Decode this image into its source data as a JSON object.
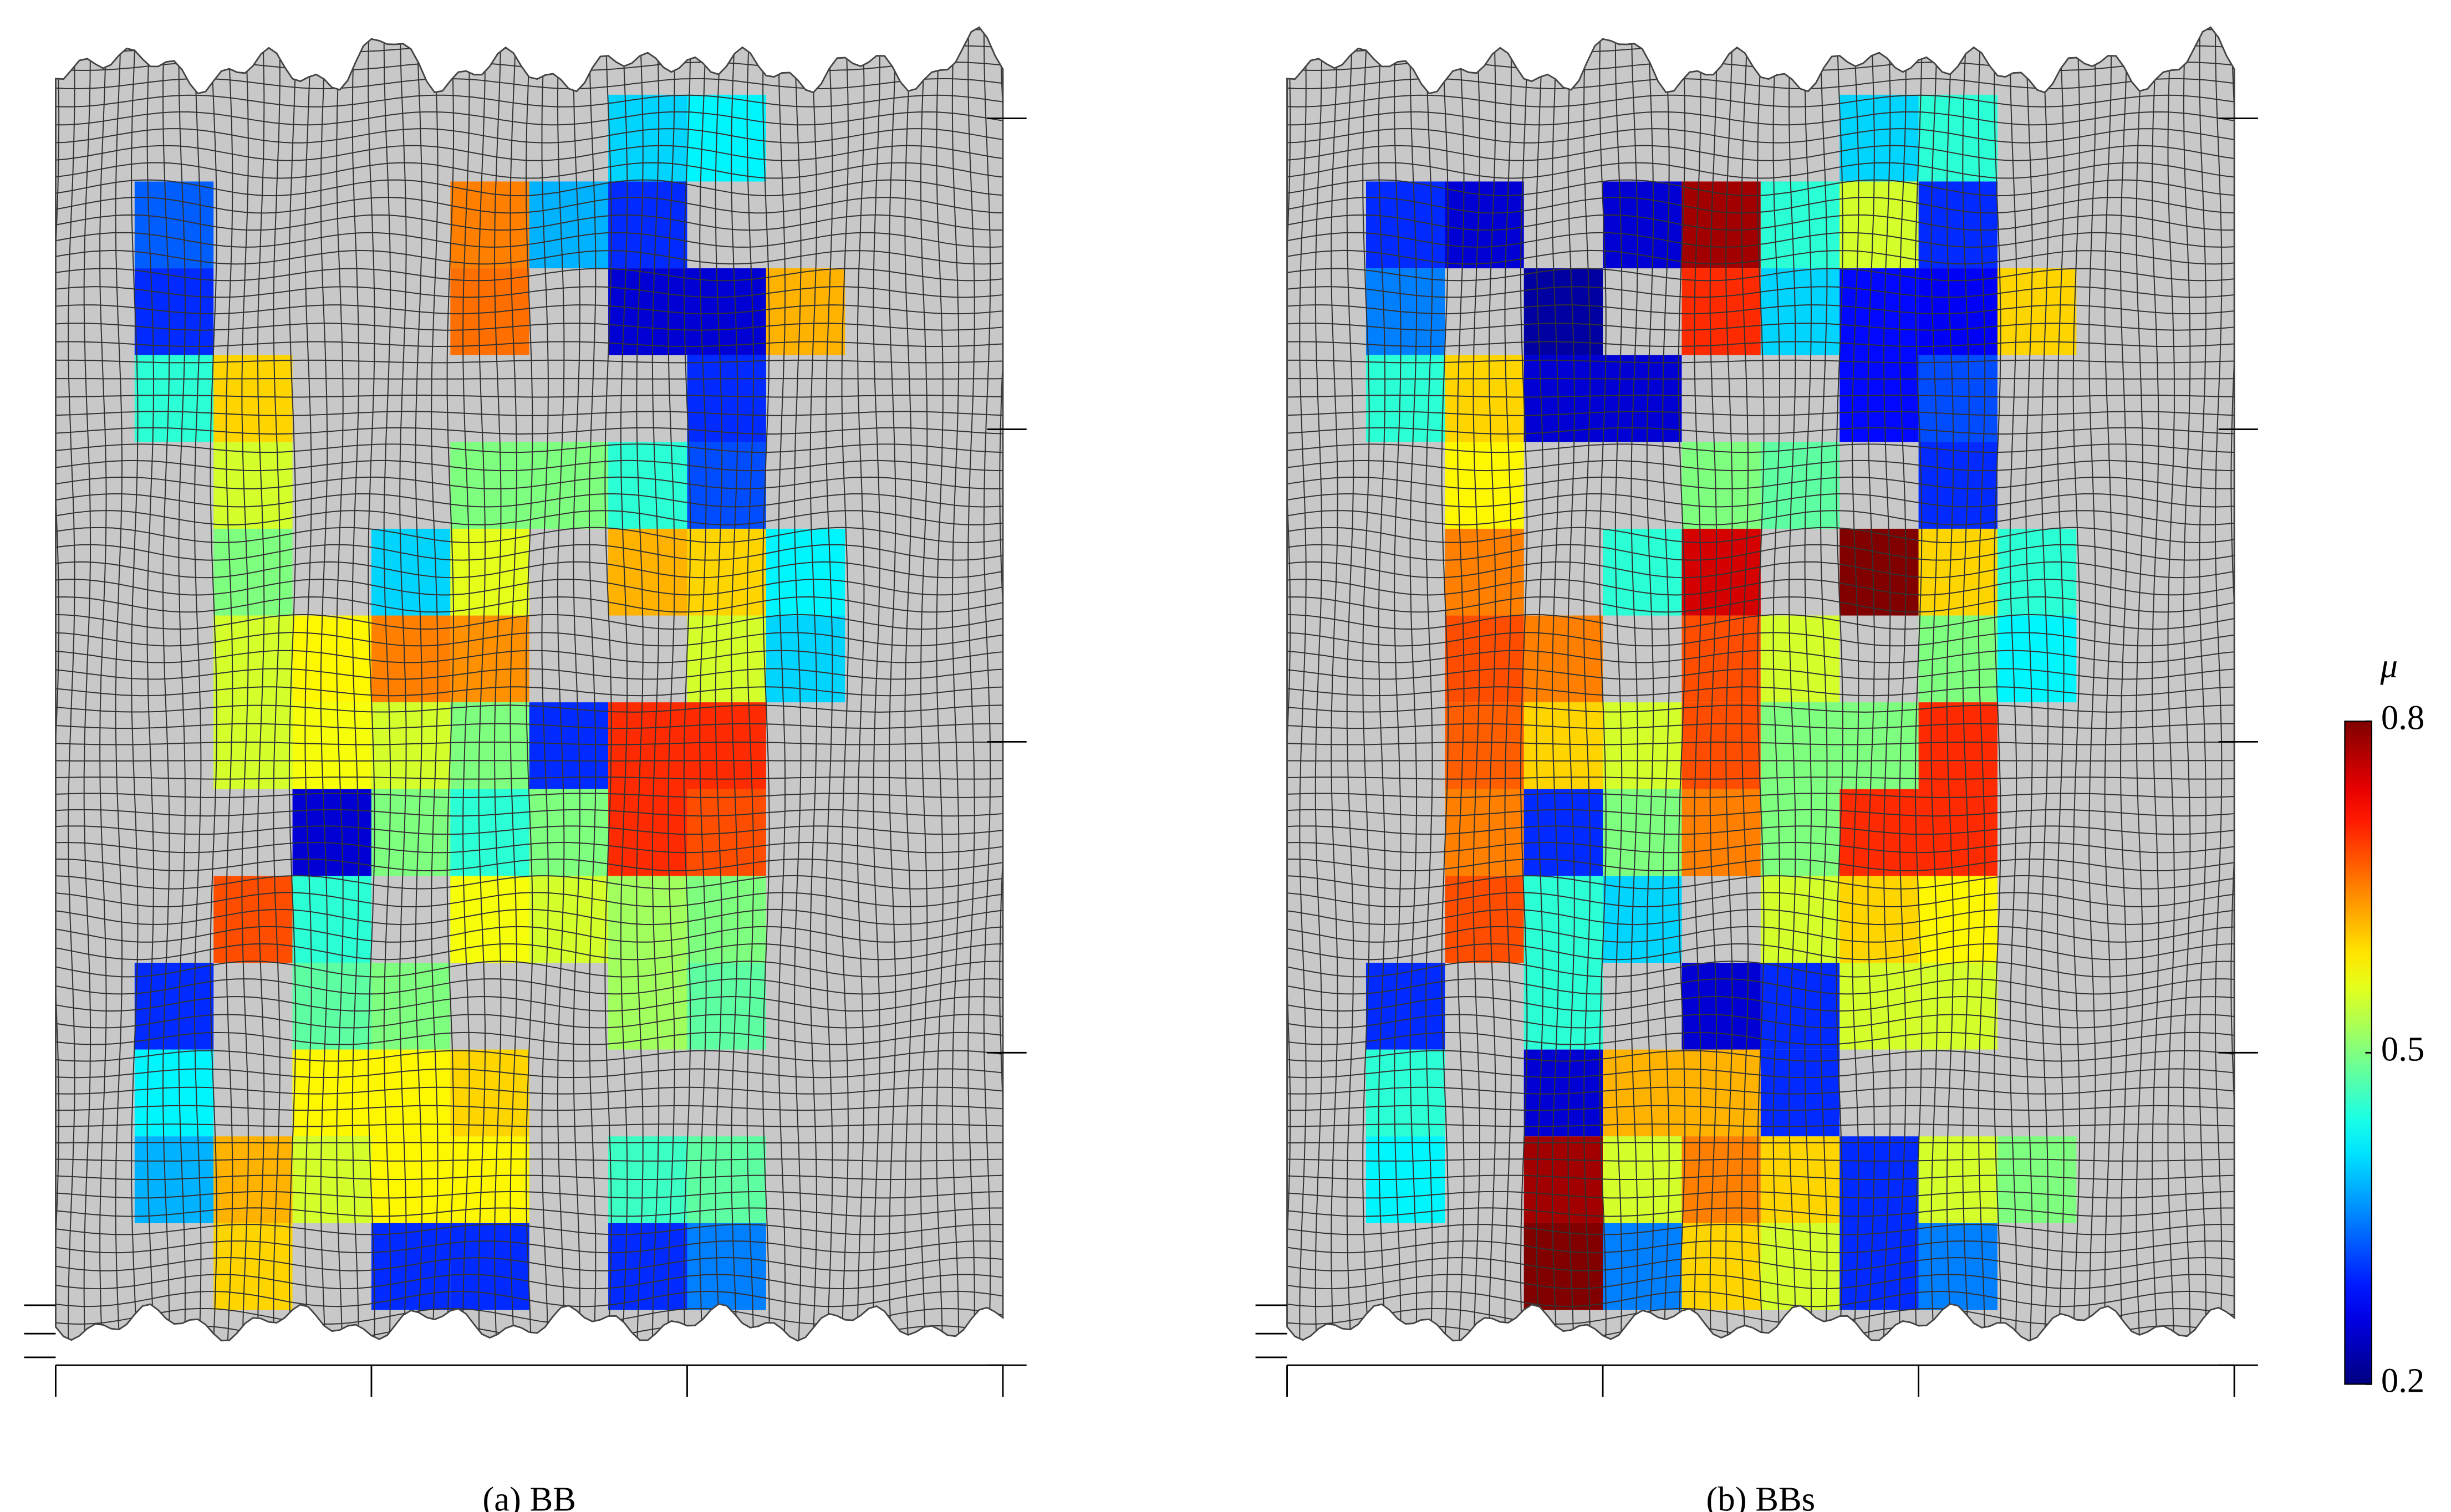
{
  "chart_data": [
    {
      "type": "heatmap",
      "title": "(a) BB",
      "clim": [
        0.2,
        0.8
      ],
      "z": [
        [
          null,
          null,
          null,
          null,
          null,
          null,
          null,
          0.4,
          0.42,
          null,
          null,
          null
        ],
        [
          null,
          0.33,
          null,
          null,
          null,
          0.65,
          0.38,
          0.3,
          null,
          null,
          null,
          null
        ],
        [
          null,
          0.3,
          null,
          null,
          null,
          0.66,
          null,
          0.25,
          0.25,
          0.62,
          null,
          null
        ],
        [
          null,
          0.45,
          0.6,
          null,
          null,
          null,
          null,
          null,
          0.3,
          null,
          null,
          null
        ],
        [
          null,
          null,
          0.55,
          null,
          null,
          0.5,
          0.5,
          0.45,
          0.32,
          null,
          null,
          null
        ],
        [
          null,
          null,
          0.5,
          null,
          0.4,
          0.56,
          null,
          0.62,
          0.6,
          0.42,
          null,
          null
        ],
        [
          null,
          null,
          0.55,
          0.58,
          0.65,
          0.64,
          null,
          null,
          0.55,
          0.4,
          null,
          null
        ],
        [
          null,
          null,
          0.55,
          0.57,
          0.55,
          0.5,
          0.3,
          0.7,
          0.7,
          null,
          null,
          null
        ],
        [
          null,
          null,
          null,
          0.25,
          0.5,
          0.45,
          0.5,
          0.7,
          0.68,
          null,
          null,
          null
        ],
        [
          null,
          null,
          0.68,
          0.45,
          null,
          0.57,
          0.55,
          0.52,
          0.5,
          null,
          null,
          null
        ],
        [
          null,
          0.3,
          null,
          0.48,
          0.5,
          null,
          null,
          0.52,
          0.48,
          null,
          null,
          null
        ],
        [
          null,
          0.42,
          null,
          0.58,
          0.58,
          0.6,
          null,
          null,
          null,
          null,
          null,
          null
        ],
        [
          null,
          0.38,
          0.62,
          0.55,
          0.58,
          0.58,
          null,
          0.46,
          0.48,
          null,
          null,
          null
        ],
        [
          null,
          null,
          0.6,
          null,
          0.3,
          0.3,
          null,
          0.3,
          0.35,
          null,
          null,
          null
        ]
      ]
    },
    {
      "type": "heatmap",
      "title": "(b) BBs",
      "clim": [
        0.2,
        0.8
      ],
      "z": [
        [
          null,
          null,
          null,
          null,
          null,
          null,
          null,
          0.4,
          0.45,
          null,
          null,
          null
        ],
        [
          null,
          0.3,
          0.25,
          null,
          0.25,
          0.78,
          0.45,
          0.55,
          0.3,
          null,
          null,
          null
        ],
        [
          null,
          0.35,
          null,
          0.22,
          null,
          0.7,
          0.4,
          0.28,
          0.27,
          0.6,
          null,
          null
        ],
        [
          null,
          0.45,
          0.6,
          0.25,
          0.25,
          null,
          null,
          0.28,
          0.32,
          null,
          null,
          null
        ],
        [
          null,
          null,
          0.58,
          null,
          null,
          0.5,
          0.48,
          null,
          0.3,
          null,
          null,
          null
        ],
        [
          null,
          null,
          0.65,
          null,
          0.45,
          0.75,
          null,
          0.8,
          0.6,
          0.45,
          null,
          null
        ],
        [
          null,
          null,
          0.68,
          0.65,
          null,
          0.68,
          0.55,
          null,
          0.5,
          0.42,
          null,
          null
        ],
        [
          null,
          null,
          0.67,
          0.6,
          0.55,
          0.68,
          0.5,
          0.5,
          0.7,
          null,
          null,
          null
        ],
        [
          null,
          null,
          0.65,
          0.3,
          0.5,
          0.65,
          0.5,
          0.7,
          0.7,
          null,
          null,
          null
        ],
        [
          null,
          null,
          0.68,
          0.45,
          0.4,
          null,
          0.55,
          0.6,
          0.58,
          null,
          null,
          null
        ],
        [
          null,
          0.3,
          null,
          0.45,
          null,
          0.25,
          0.3,
          0.55,
          0.55,
          null,
          null,
          null
        ],
        [
          null,
          0.45,
          null,
          0.25,
          0.62,
          0.62,
          0.3,
          null,
          null,
          null,
          null,
          null
        ],
        [
          null,
          0.42,
          null,
          0.78,
          0.55,
          0.65,
          0.6,
          0.3,
          0.55,
          0.5,
          null,
          null
        ],
        [
          null,
          null,
          null,
          0.8,
          0.35,
          0.6,
          0.55,
          0.3,
          0.35,
          null,
          null,
          null
        ]
      ],
      "colorbar": {
        "label": "μ",
        "ticks": [
          0.2,
          0.5,
          0.8
        ]
      }
    }
  ]
}
